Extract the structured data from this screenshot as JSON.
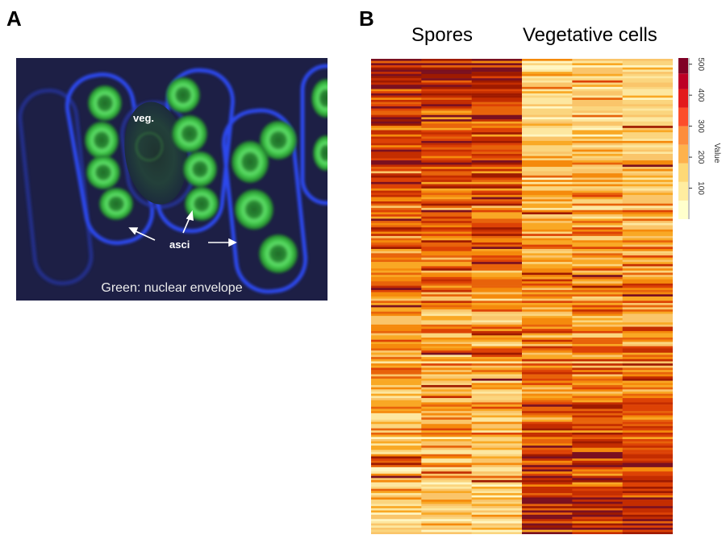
{
  "figure": {
    "panel_a": {
      "letter": "A",
      "labels": {
        "veg": "veg.",
        "asci": "asci",
        "caption": "Green: nuclear envelope"
      },
      "colors": {
        "background": "#1d1f45",
        "cell_wall": "#2f4dff",
        "nucleus": "#3fd04a"
      }
    },
    "panel_b": {
      "letter": "B",
      "group_labels": [
        "Spores",
        "Vegetative cells"
      ]
    }
  },
  "chart_data": {
    "type": "heatmap",
    "title": "",
    "column_groups": [
      {
        "name": "Spores",
        "columns": 3
      },
      {
        "name": "Vegetative cells",
        "columns": 3
      }
    ],
    "n_columns": 6,
    "n_rows": 220,
    "row_labels_shown": false,
    "trend": "Spore columns high (orange to dark red) in upper rows, low (pale yellow) in lower rows; vegetative columns pale in upper rows, high in lower rows",
    "colorbar": {
      "label": "Value",
      "ticks": [
        100,
        200,
        300,
        400,
        500
      ],
      "range": [
        0,
        520
      ],
      "bins": [
        {
          "min": 0,
          "max": 60,
          "color": "#ffffcc"
        },
        {
          "min": 60,
          "max": 120,
          "color": "#ffeda0"
        },
        {
          "min": 120,
          "max": 180,
          "color": "#fed976"
        },
        {
          "min": 180,
          "max": 240,
          "color": "#feb24c"
        },
        {
          "min": 240,
          "max": 300,
          "color": "#fd8d3c"
        },
        {
          "min": 300,
          "max": 360,
          "color": "#fc4e2a"
        },
        {
          "min": 360,
          "max": 420,
          "color": "#e31a1c"
        },
        {
          "min": 420,
          "max": 470,
          "color": "#bd0026"
        },
        {
          "min": 470,
          "max": 520,
          "color": "#800026"
        }
      ]
    },
    "cell_palette": [
      "#fff6c2",
      "#fde7a0",
      "#fbd57e",
      "#fac56a",
      "#f9a824",
      "#f58a0c",
      "#e8630a",
      "#dd4205",
      "#c42d00",
      "#9e1a00",
      "#7a1020"
    ]
  }
}
